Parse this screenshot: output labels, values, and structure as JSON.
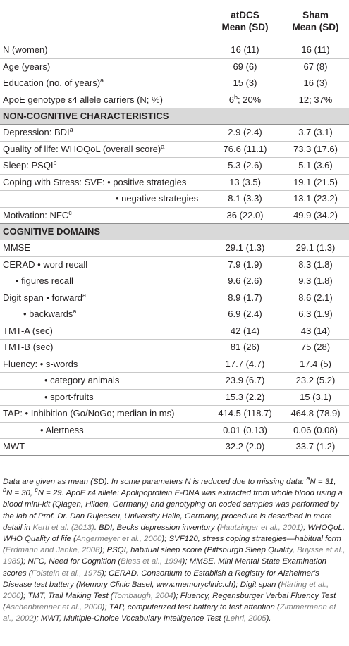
{
  "header": {
    "col_group1_l1": "atDCS",
    "col_group1_l2": "Mean (SD)",
    "col_group2_l1": "Sham",
    "col_group2_l2": "Mean (SD)"
  },
  "rows_demo": [
    {
      "label": "N (women)",
      "sup": "",
      "a": "16 (11)",
      "b": "16 (11)"
    },
    {
      "label": "Age (years)",
      "sup": "",
      "a": "69 (6)",
      "b": "67 (8)"
    },
    {
      "label": "Education (no. of years)",
      "sup": "a",
      "a": "15 (3)",
      "b": "16 (3)"
    },
    {
      "label": "ApoE genotype ε4 allele carriers (N; %)",
      "sup": "",
      "a_main": "6",
      "a_sup": "b",
      "a_rest": "; 20%",
      "b": "12; 37%"
    }
  ],
  "section1": "NON-COGNITIVE CHARACTERISTICS",
  "rows_noncog": [
    {
      "label": "Depression: BDI",
      "sup": "a",
      "a": "2.9 (2.4)",
      "b": "3.7 (3.1)"
    },
    {
      "label": "Quality of life: WHOQoL (overall score)",
      "sup": "a",
      "a": "76.6 (11.1)",
      "b": "73.3 (17.6)"
    },
    {
      "label": "Sleep: PSQI",
      "sup": "b",
      "a": "5.3 (2.6)",
      "b": "5.1 (3.6)"
    },
    {
      "label": "Coping with Stress: SVF: • positive strategies",
      "sup": "",
      "a": "13 (3.5)",
      "b": "19.1 (21.5)"
    },
    {
      "label": "• negative strategies",
      "sup": "",
      "a": "8.1 (3.3)",
      "b": "13.1 (23.2)"
    },
    {
      "label": "Motivation: NFC",
      "sup": "c",
      "a": "36 (22.0)",
      "b": "49.9 (34.2)"
    }
  ],
  "section2": "COGNITIVE DOMAINS",
  "rows_cog": [
    {
      "label": "MMSE",
      "sup": "",
      "a": "29.1 (1.3)",
      "b": "29.1 (1.3)"
    },
    {
      "label": "CERAD • word recall",
      "sup": "",
      "a": "7.9 (1.9)",
      "b": "8.3 (1.8)"
    },
    {
      "label": "• figures recall",
      "sup": "",
      "a": "9.6 (2.6)",
      "b": "9.3 (1.8)"
    },
    {
      "label": "Digit span • forward",
      "sup": "a",
      "a": "8.9 (1.7)",
      "b": "8.6 (2.1)"
    },
    {
      "label": "• backwards",
      "sup": "a",
      "a": "6.9 (2.4)",
      "b": "6.3 (1.9)"
    },
    {
      "label": "TMT-A (sec)",
      "sup": "",
      "a": "42 (14)",
      "b": "43 (14)"
    },
    {
      "label": "TMT-B (sec)",
      "sup": "",
      "a": "81 (26)",
      "b": "75 (28)"
    },
    {
      "label": "Fluency: • s-words",
      "sup": "",
      "a": "17.7 (4.7)",
      "b": "17.4 (5)"
    },
    {
      "label": "• category animals",
      "sup": "",
      "a": "23.9 (6.7)",
      "b": "23.2 (5.2)"
    },
    {
      "label": "• sport-fruits",
      "sup": "",
      "a": "15.3 (2.2)",
      "b": "15 (3.1)"
    },
    {
      "label": "TAP: • Inhibition (Go/NoGo; median in ms)",
      "sup": "",
      "a": "414.5 (118.7)",
      "b": "464.8 (78.9)"
    },
    {
      "label": "• Alertness",
      "sup": "",
      "a": "0.01 (0.13)",
      "b": "0.06 (0.08)"
    },
    {
      "label": "MWT",
      "sup": "",
      "a": "32.2 (2.0)",
      "b": "33.7 (1.2)"
    }
  ],
  "notes": {
    "p1": "Data are given as mean (SD). In some parameters N is reduced due to missing data: ",
    "na_sup": "a",
    "na": "N = 31, ",
    "nb_sup": "b",
    "nb": "N = 30, ",
    "nc_sup": "c",
    "nc": "N = 29. ApoE ε4 allele: Apolipoprotein E-DNA was extracted from whole blood using a blood mini-kit (Qiagen, Hilden, Germany) and genotyping on coded samples was performed by the lab of Prof. Dr. Dan Rujecscu, University Halle, Germany, procedure is described in more detail in ",
    "ref_kerti": "Kerti et al. (2013)",
    "t2": ". BDI, Becks depression inventory (",
    "ref_hautz": "Hautzinger et al., 2001",
    "t3": "); WHOQoL, WHO Quality of life (",
    "ref_anger": "Angermeyer et al., 2000",
    "t4": "); SVF120, stress coping strategies—habitual form (",
    "ref_erdm": "Erdmann and Janke, 2008",
    "t5": "); PSQI, habitual sleep score (Pittsburgh Sleep Quality, ",
    "ref_buys": "Buysse et al., 1989",
    "t6": "); NFC, Need for Cognition (",
    "ref_bless": "Bless et al., 1994",
    "t7": "); MMSE, Mini Mental State Examination scores (",
    "ref_folst": "Folstein et al., 1975",
    "t8": "); CERAD, Consortium to Establish a Registry for Alzheimer's Disease test battery (Memory Clinic Basel, www.memoryclinic.ch); Digit span (",
    "ref_hart": "Härting et al., 2000",
    "t9": "); TMT, Trail Making Test (",
    "ref_tomb": "Tombaugh, 2004",
    "t10": "); Fluency, Regensburger Verbal Fluency Test (",
    "ref_asch": "Aschenbrenner et al., 2000",
    "t11": "); TAP, computerized test battery to test attention (",
    "ref_zimm": "Zimmermann et al., 2002",
    "t12": "); MWT, Multiple-Choice Vocabulary Intelligence Test (",
    "ref_lehrl": "Lehrl, 2005",
    "t13": ")."
  }
}
